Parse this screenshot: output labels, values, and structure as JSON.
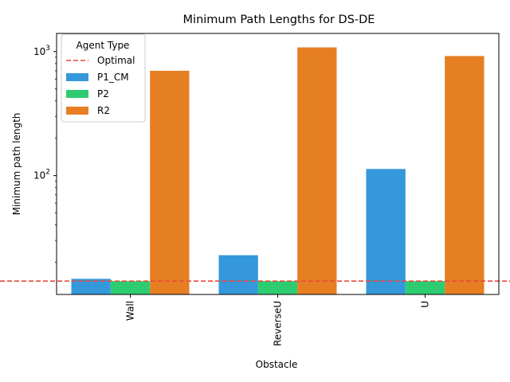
{
  "chart_data": {
    "type": "bar",
    "title": "Minimum Path Lengths for DS-DE",
    "xlabel": "Obstacle",
    "ylabel": "Minimum path length",
    "yscale": "log",
    "ylim": [
      11,
      1400
    ],
    "categories": [
      "Wall",
      "ReverseU",
      "U"
    ],
    "series": [
      {
        "name": "P1_CM",
        "color": "#3498db",
        "values": [
          14.7,
          22.8,
          113
        ]
      },
      {
        "name": "P2",
        "color": "#2ecc71",
        "values": [
          14.1,
          14.1,
          14.1
        ]
      },
      {
        "name": "R2",
        "color": "#e67e22",
        "values": [
          700,
          1080,
          920
        ]
      }
    ],
    "reference_line": {
      "name": "Optimal",
      "value": 14.1,
      "color": "#e74c3c",
      "style": "dashed"
    },
    "yticks": [
      {
        "value": 100,
        "base": "10",
        "exp": "2"
      },
      {
        "value": 1000,
        "base": "10",
        "exp": "3"
      }
    ],
    "legend": {
      "title": "Agent Type",
      "placement": "top-left"
    },
    "grid": false
  }
}
